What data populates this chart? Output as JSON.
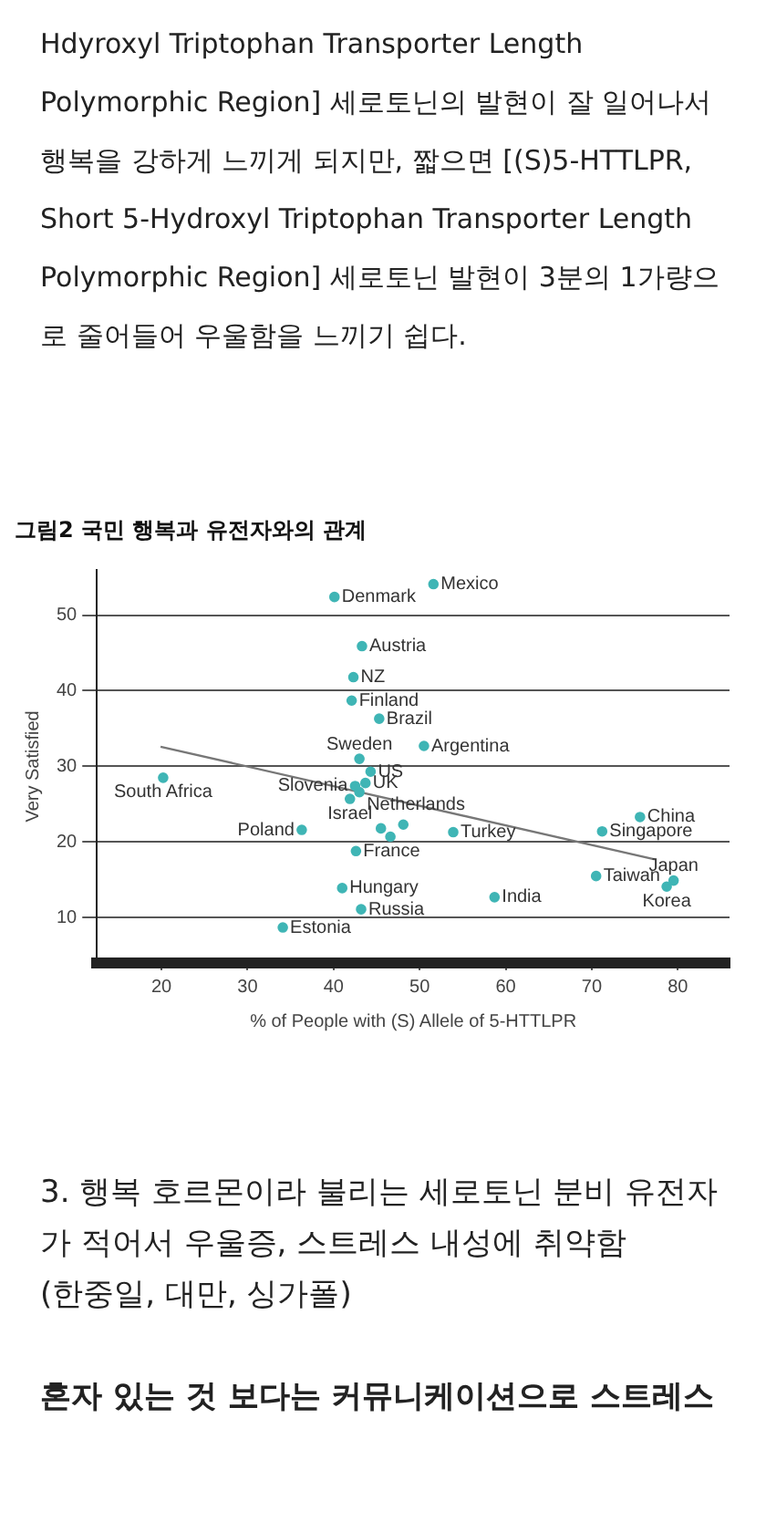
{
  "chart_data": {
    "type": "scatter",
    "title": "그림2 국민 행복과 유전자와의 관계",
    "xlabel": "% of People with (S) Allele of 5-HTTLPR",
    "ylabel": "Very Satisfied",
    "xlim": [
      12.5,
      86
    ],
    "xticks": [
      20,
      30,
      40,
      50,
      60,
      70,
      80
    ],
    "ylim": [
      4,
      56
    ],
    "yticks": [
      10,
      20,
      30,
      40,
      50
    ],
    "grid": "y",
    "legend": false,
    "series": [
      {
        "type": "scatter",
        "marker": "circle",
        "color": "#3fb5b5",
        "x": [
          40.1,
          51.6,
          43.3,
          42.3,
          42.1,
          45.3,
          43,
          50.5,
          44.3,
          43.7,
          42.5,
          43,
          41.9,
          20.2,
          36.3,
          53.9,
          42.6,
          41,
          43.2,
          34.1,
          58.7,
          75.6,
          71.2,
          70.5,
          79.5,
          78.7,
          45.5,
          46.6,
          48.1
        ],
        "values": [
          52.4,
          54.1,
          45.9,
          41.8,
          38.7,
          36.3,
          31,
          32.7,
          29.3,
          27.8,
          27.4,
          26.6,
          25.7,
          28.5,
          21.6,
          21.3,
          18.8,
          13.9,
          11.1,
          8.7,
          12.7,
          23.3,
          21.4,
          15.5,
          14.9,
          14.1,
          21.8,
          20.7,
          22.3
        ]
      },
      {
        "type": "line",
        "color": "#777777",
        "x": [
          19.9,
          77.3
        ],
        "values": [
          32.6,
          17.7
        ]
      }
    ],
    "annotations": [
      "Hdyroxyl Triptophan Transporter Length Polymorphic Region] 세로토닌의 발현이 잘 일어나서 행복을 강하게 느끼게 되지만, 짧으면 [(S)5-HTTLPR, Short 5-Hydroxyl Triptophan Transporter Length Polymorphic Region] 세로토닌 발현이 3분의 1가량으로 줄어들어 우울함을 느끼기 쉽다.",
      {
        "text": "Denmark",
        "x": 40.1,
        "y": 52.4
      },
      {
        "text": "Mexico",
        "x": 51.6,
        "y": 54.1
      },
      {
        "text": "Austria",
        "x": 43.3,
        "y": 45.9
      },
      {
        "text": "NZ",
        "x": 42.3,
        "y": 41.8
      },
      {
        "text": "Finland",
        "x": 42.1,
        "y": 38.7
      },
      {
        "text": "Brazil",
        "x": 45.3,
        "y": 36.3
      },
      {
        "text": "Sweden",
        "x": 43,
        "y": 31
      },
      {
        "text": "Argentina",
        "x": 50.5,
        "y": 32.7
      },
      {
        "text": "US",
        "x": 44.3,
        "y": 29.3
      },
      {
        "text": "UK",
        "x": 43.7,
        "y": 27.8
      },
      {
        "text": "Slovenia",
        "x": 42.5,
        "y": 27.4
      },
      {
        "text": "Netherlands",
        "x": 43,
        "y": 26.6
      },
      {
        "text": "Israel",
        "x": 41.9,
        "y": 25.7
      },
      {
        "text": "South Africa",
        "x": 20.2,
        "y": 28.5
      },
      {
        "text": "Poland",
        "x": 36.3,
        "y": 21.6
      },
      {
        "text": "Turkey",
        "x": 53.9,
        "y": 21.3
      },
      {
        "text": "France",
        "x": 42.6,
        "y": 18.8
      },
      {
        "text": "Hungary",
        "x": 41,
        "y": 13.9
      },
      {
        "text": "Russia",
        "x": 43.2,
        "y": 11.1
      },
      {
        "text": "Estonia",
        "x": 34.1,
        "y": 8.7
      },
      {
        "text": "India",
        "x": 58.7,
        "y": 12.7
      },
      {
        "text": "China",
        "x": 75.6,
        "y": 23.3
      },
      {
        "text": "Singapore",
        "x": 71.2,
        "y": 21.4
      },
      {
        "text": "Taiwan",
        "x": 70.5,
        "y": 15.5
      },
      {
        "text": "Japan",
        "x": 79.5,
        "y": 14.9
      },
      {
        "text": "Korea",
        "x": 78.7,
        "y": 14.1
      },
      "3. 행복 호르몬이라 불리는 세로토닌 분비 유전자가 적어서 우울증, 스트레스 내성에 취약함",
      "(한중일, 대만, 싱가폴)",
      "혼자 있는 것 보다는 커뮤니케이션으로 스트레스"
    ]
  }
}
